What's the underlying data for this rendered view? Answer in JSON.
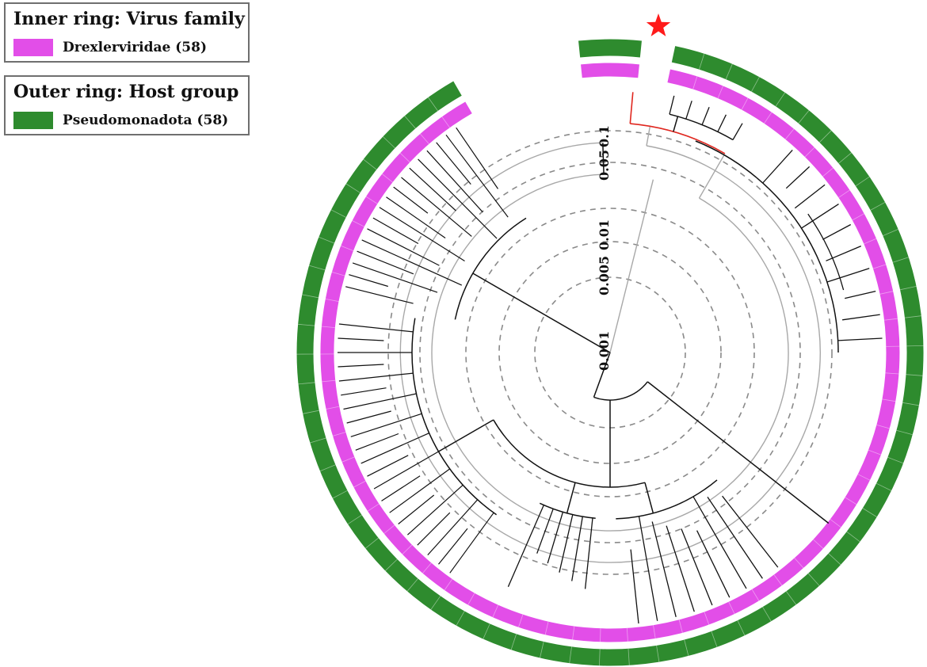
{
  "legend": {
    "inner": {
      "title": "Inner ring: Virus family",
      "label": "Drexlerviridae (58)",
      "color": "#e24ee8"
    },
    "outer": {
      "title": "Outer ring: Host group",
      "label": "Pseudomonadota (58)",
      "color": "#2e8b2e"
    }
  },
  "scale": {
    "labels": [
      "0.001",
      "0.005",
      "0.01",
      "0.05",
      "0.1"
    ]
  },
  "highlight": {
    "marker": "star-icon",
    "color": "#ff1a1a",
    "branch_color": "#e0271f"
  },
  "tree": {
    "leaf_count": 58,
    "ring_inner_color": "#e24ee8",
    "ring_outer_color": "#2e8b2e"
  }
}
